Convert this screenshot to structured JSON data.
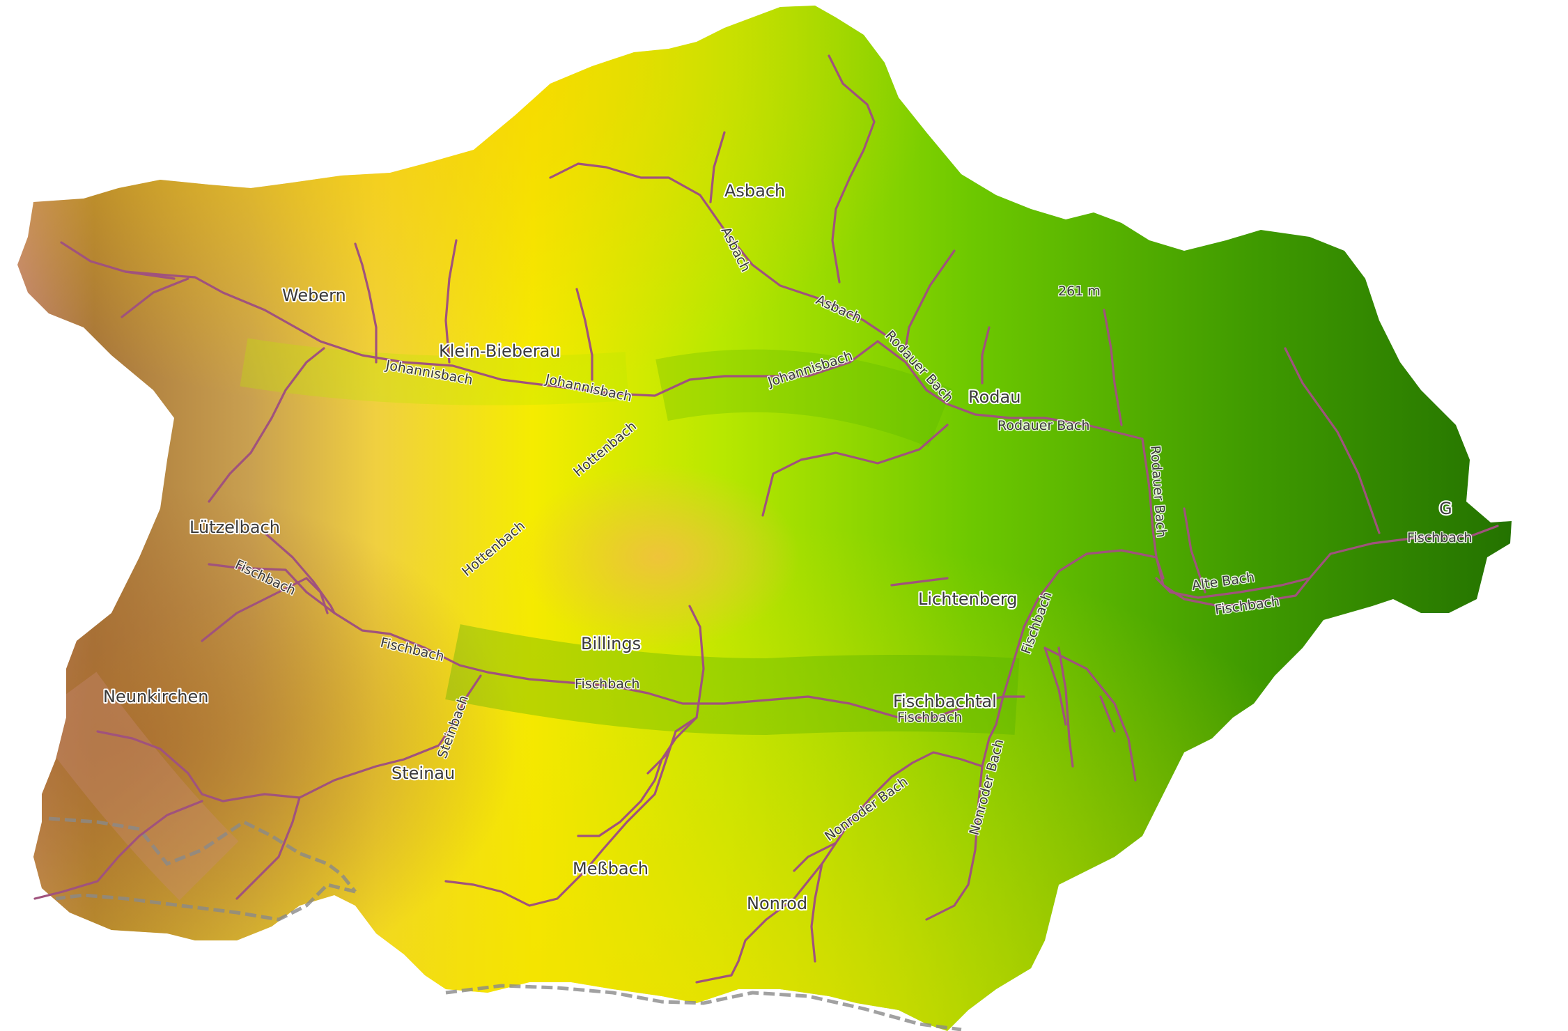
{
  "map": {
    "places": [
      {
        "name": "Asbach"
      },
      {
        "name": "Webern"
      },
      {
        "name": "Klein-Bieberau"
      },
      {
        "name": "Rodau"
      },
      {
        "name": "Lützelbach"
      },
      {
        "name": "Lichtenberg"
      },
      {
        "name": "Billings"
      },
      {
        "name": "Neunkirchen"
      },
      {
        "name": "Fischbachtal"
      },
      {
        "name": "Steinau"
      },
      {
        "name": "Meßbach"
      },
      {
        "name": "Nonrod"
      },
      {
        "name": "G"
      }
    ],
    "peak": {
      "label": "261 m"
    },
    "rivers": [
      {
        "name": "Asbach"
      },
      {
        "name": "Asbach"
      },
      {
        "name": "Rodauer Bach"
      },
      {
        "name": "Johannisbach"
      },
      {
        "name": "Johannisbach"
      },
      {
        "name": "Johannisbach"
      },
      {
        "name": "Rodauer Bach"
      },
      {
        "name": "Rodauer Bach"
      },
      {
        "name": "Hottenbach"
      },
      {
        "name": "Hottenbach"
      },
      {
        "name": "Fischbach"
      },
      {
        "name": "Fischbach"
      },
      {
        "name": "Fischbach"
      },
      {
        "name": "Fischbach"
      },
      {
        "name": "Fischbach"
      },
      {
        "name": "Alte Bach"
      },
      {
        "name": "Fischbach"
      },
      {
        "name": "Fischbach"
      },
      {
        "name": "Steinbach"
      },
      {
        "name": "Nonroder Bach"
      },
      {
        "name": "Nonroder Bach"
      }
    ],
    "colors": {
      "high_elevation": "#c98a7c",
      "mid_high": "#b07d32",
      "mid": "#f2e600",
      "mid_low": "#a8e000",
      "low_elevation": "#2e7d00",
      "river": "#a0527d"
    }
  }
}
